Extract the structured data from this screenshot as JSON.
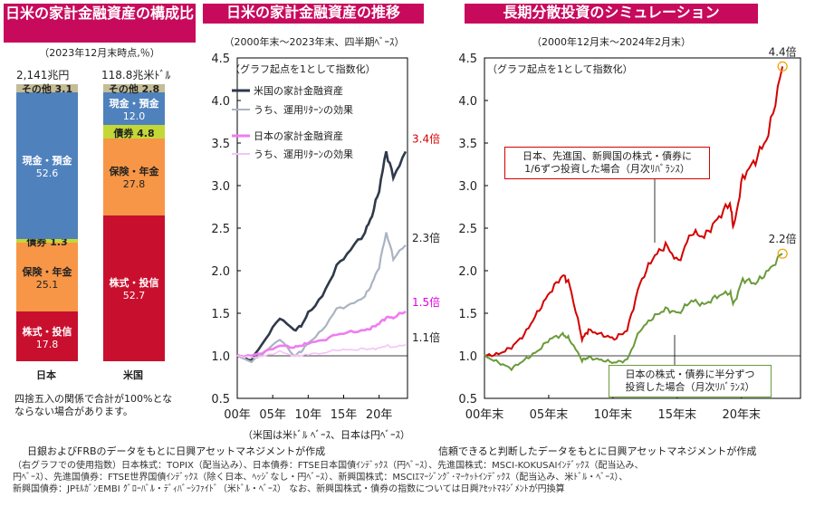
{
  "panel1": {
    "title": "日米の家計金融資産の構成比",
    "subtitle": "（2023年12月末時点,％）",
    "japan_total": "2,141兆円",
    "us_total": "118.8兆米ﾄﾞﾙ",
    "japan_label": "日本",
    "us_label": "米国",
    "note": "四捨五入の関係で合計が100%となならない場合があります。",
    "japan": [
      {
        "name": "株式・投信",
        "value": "17.8"
      },
      {
        "name": "保険・年金",
        "value": "25.1"
      },
      {
        "name": "債券",
        "value": "1.3"
      },
      {
        "name": "現金・預金",
        "value": "52.6"
      },
      {
        "name": "その他",
        "value": "3.1"
      }
    ],
    "us": [
      {
        "name": "株式・投信",
        "value": "52.7"
      },
      {
        "name": "保険・年金",
        "value": "27.8"
      },
      {
        "name": "債券",
        "value": "4.8"
      },
      {
        "name": "現金・預金",
        "value": "12.0"
      },
      {
        "name": "その他",
        "value": "2.8"
      }
    ],
    "colors": {
      "stocks": "#c8102e",
      "insurance": "#f79646",
      "bonds": "#c3d837",
      "cash": "#4f81bd",
      "other": "#c4bd97"
    }
  },
  "panel2": {
    "title": "日米の家計金融資産の推移",
    "subtitle": "（2000年末～2023年末、四半期ﾍﾞｰｽ）",
    "inner_note": "（グラフ起点を1として指数化）",
    "legend": [
      "米国の家計金融資産",
      "うち、運用ﾘﾀｰﾝの効果",
      "日本の家計金融資産",
      "うち、運用ﾘﾀｰﾝの効果"
    ],
    "end_labels": [
      "3.4倍",
      "2.3倍",
      "1.5倍",
      "1.1倍"
    ],
    "yticks": [
      "0.5",
      "1.0",
      "1.5",
      "2.0",
      "2.5",
      "3.0",
      "3.5",
      "4.0",
      "4.5"
    ],
    "xticks": [
      "00年",
      "05年",
      "10年",
      "15年",
      "20年"
    ],
    "axis_note": "（米国は米ﾄﾞﾙ ﾍﾞｰｽ、日本は円ﾍﾞｰｽ）",
    "source": "日銀およびFRBのデータをもとに日興アセットマネジメントが作成"
  },
  "panel3": {
    "title": "長期分散投資のシミュレーション",
    "subtitle": "（2000年12月末～2024年2月末）",
    "inner_note": "（グラフ起点を1として指数化）",
    "box_red": [
      "日本、先進国、新興国の株式・債券に",
      "1/6ずつ投資した場合（月次ﾘﾊﾞﾗﾝｽ）"
    ],
    "box_green": [
      "日本の株式・債券に半分ずつ",
      "投資した場合（月次ﾘﾊﾞﾗﾝｽ）"
    ],
    "end_labels": [
      "4.4倍",
      "2.2倍"
    ],
    "yticks": [
      "0.5",
      "1.0",
      "1.5",
      "2.0",
      "2.5",
      "3.0",
      "3.5",
      "4.0",
      "4.5"
    ],
    "xticks": [
      "00年末",
      "05年末",
      "10年末",
      "15年末",
      "20年末"
    ],
    "source": "信頼できると判断したデータをもとに日興アセットマネジメントが作成"
  },
  "footer": [
    "（右グラフでの使用指数）日本株式：TOPIX（配当込み）、日本債券：FTSE日本国債ｲﾝﾃﾞｯｸｽ（円ﾍﾞｰｽ）、先進国株式：MSCI-KOKUSAIｲﾝﾃﾞｯｸｽ（配当込み、",
    "円ﾍﾞｰｽ）、先進国債券：FTSE世界国債ｲﾝﾃﾞｯｸｽ（除く日本、ﾍｯｼﾞなし・円ﾍﾞｰｽ）、新興国株式：MSCIｴﾏｰｼﾞﾝｸﾞ･ﾏｰｹｯﾄｲﾝﾃﾞｯｸｽ（配当込み、米ﾄﾞﾙ・ﾍﾞｰｽ）、",
    "新興国債券：JPﾓﾙｶﾞﾝEMBI ｸﾞﾛｰﾊﾞﾙ・ﾃﾞｨﾊﾞｰｼﾌｧｲﾄﾞ（米ﾄﾞﾙ・ﾍﾞｰｽ） なお、新興国株式・債券の指数については日興ｱｾｯﾄﾏﾈｼﾞﾒﾝﾄが円換算"
  ],
  "chart_data": [
    {
      "type": "bar",
      "title": "日米の家計金融資産の構成比",
      "categories": [
        "日本",
        "米国"
      ],
      "series": [
        {
          "name": "株式・投信",
          "values": [
            17.8,
            52.7
          ]
        },
        {
          "name": "保険・年金",
          "values": [
            25.1,
            27.8
          ]
        },
        {
          "name": "債券",
          "values": [
            1.3,
            4.8
          ]
        },
        {
          "name": "現金・預金",
          "values": [
            52.6,
            12.0
          ]
        },
        {
          "name": "その他",
          "values": [
            3.1,
            2.8
          ]
        }
      ]
    },
    {
      "type": "line",
      "title": "日米の家計金融資産の推移",
      "ylim": [
        0.5,
        4.5
      ],
      "x": [
        2000,
        2002,
        2004,
        2006,
        2008,
        2009,
        2010,
        2012,
        2014,
        2016,
        2018,
        2019,
        2020,
        2021,
        2022,
        2023.75
      ],
      "series": [
        {
          "name": "米国の家計金融資産",
          "values": [
            1.0,
            0.95,
            1.2,
            1.45,
            1.3,
            1.35,
            1.5,
            1.7,
            2.05,
            2.25,
            2.45,
            2.65,
            2.95,
            3.4,
            3.1,
            3.4
          ],
          "color": "#2f3a4a"
        },
        {
          "name": "うち、運用ﾘﾀｰﾝの効果",
          "values": [
            1.0,
            0.93,
            1.05,
            1.2,
            1.0,
            1.05,
            1.15,
            1.3,
            1.55,
            1.6,
            1.7,
            1.85,
            2.05,
            2.45,
            2.15,
            2.3
          ],
          "color": "#a9b4c2"
        },
        {
          "name": "日本の家計金融資産",
          "values": [
            1.0,
            1.0,
            1.05,
            1.12,
            1.1,
            1.12,
            1.15,
            1.18,
            1.25,
            1.28,
            1.3,
            1.33,
            1.38,
            1.45,
            1.45,
            1.52
          ],
          "color": "#f07cf0"
        },
        {
          "name": "うち、運用ﾘﾀｰﾝの効果",
          "values": [
            1.0,
            0.98,
            1.0,
            1.05,
            1.0,
            1.0,
            1.02,
            1.03,
            1.07,
            1.07,
            1.08,
            1.08,
            1.09,
            1.12,
            1.1,
            1.13
          ],
          "color": "#f6c3f6"
        }
      ]
    },
    {
      "type": "line",
      "title": "長期分散投資のシミュレーション",
      "ylim": [
        0.5,
        4.5
      ],
      "x": [
        2000.9,
        2002,
        2003,
        2004,
        2005,
        2006,
        2007,
        2007.5,
        2008.5,
        2009,
        2010,
        2011,
        2012,
        2013,
        2014,
        2015,
        2016,
        2017,
        2018,
        2019,
        2020,
        2020.3,
        2021,
        2022,
        2023,
        2024.1
      ],
      "series": [
        {
          "name": "日本、先進国、新興国の株式・債券に1/6ずつ投資した場合（月次ﾘﾊﾞﾗﾝｽ）",
          "values": [
            1.0,
            1.02,
            1.1,
            1.25,
            1.5,
            1.75,
            1.95,
            1.85,
            1.2,
            1.3,
            1.25,
            1.2,
            1.3,
            1.85,
            2.15,
            2.3,
            2.1,
            2.45,
            2.4,
            2.6,
            2.8,
            2.5,
            3.1,
            3.3,
            3.6,
            4.4
          ],
          "color": "#d40000"
        },
        {
          "name": "日本の株式・債券に半分ずつ投資した場合（月次ﾘﾊﾞﾗﾝｽ）",
          "values": [
            1.0,
            0.92,
            0.85,
            0.95,
            1.05,
            1.2,
            1.25,
            1.2,
            0.95,
            0.98,
            0.95,
            0.92,
            0.95,
            1.3,
            1.45,
            1.55,
            1.5,
            1.65,
            1.6,
            1.7,
            1.75,
            1.6,
            1.9,
            1.85,
            2.0,
            2.2
          ],
          "color": "#6a9a3a"
        }
      ]
    }
  ]
}
